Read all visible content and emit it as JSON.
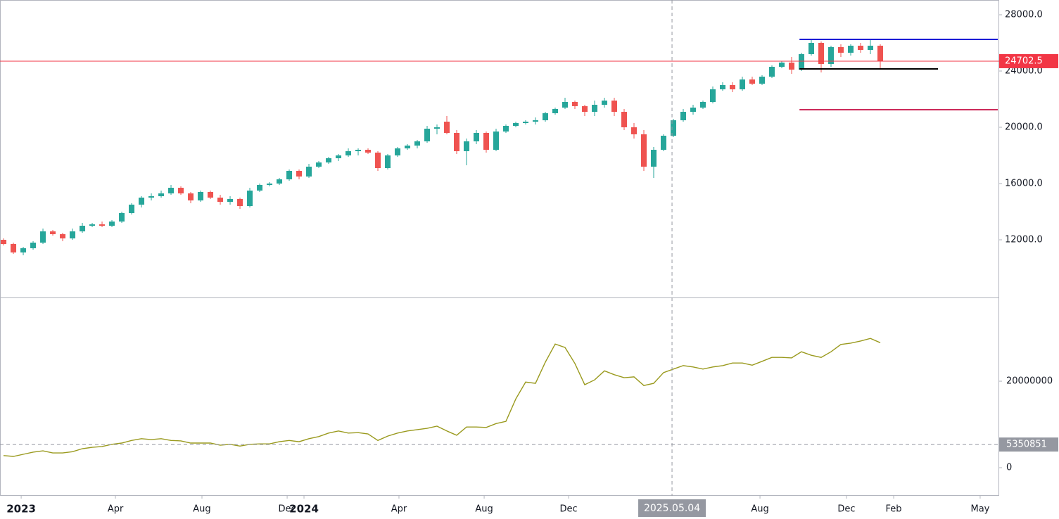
{
  "chart_data": [
    {
      "type": "candlestick",
      "color_up": "#26a69a",
      "color_down": "#ef5350",
      "open": [
        12000,
        11700,
        11100,
        11400,
        11800,
        12600,
        12400,
        12100,
        12600,
        13000,
        13100,
        13000,
        13300,
        13900,
        14500,
        15000,
        15100,
        15300,
        15700,
        15300,
        14800,
        15400,
        15000,
        14700,
        14900,
        14400,
        15500,
        15900,
        16000,
        16300,
        16900,
        16500,
        17200,
        17500,
        17800,
        18000,
        18300,
        18400,
        18200,
        17100,
        18000,
        18500,
        18700,
        19000,
        19900,
        20400,
        19600,
        18300,
        19000,
        19600,
        18400,
        19700,
        20100,
        20300,
        20400,
        20500,
        21000,
        21400,
        21800,
        21500,
        21100,
        21600,
        21900,
        21100,
        20000,
        19500,
        17200,
        18400,
        19400,
        20500,
        21100,
        21400,
        21800,
        22700,
        23000,
        22700,
        23400,
        23100,
        23600,
        24300,
        24600,
        24100,
        25200,
        26000,
        24500,
        25700,
        25300,
        25800,
        25500,
        25800
      ],
      "high": [
        12100,
        11800,
        11500,
        11900,
        12800,
        12700,
        12500,
        12800,
        13200,
        13200,
        13300,
        13400,
        14000,
        14600,
        15100,
        15300,
        15500,
        15900,
        15800,
        15400,
        15500,
        15500,
        15200,
        15100,
        15000,
        15700,
        16000,
        16100,
        16400,
        17000,
        17000,
        17400,
        17600,
        17900,
        18100,
        18500,
        18500,
        18500,
        18300,
        18100,
        18600,
        18800,
        19100,
        20100,
        20200,
        20800,
        19800,
        19200,
        19800,
        19700,
        19900,
        20200,
        20400,
        20500,
        20700,
        21100,
        21400,
        22100,
        21900,
        21600,
        21900,
        22100,
        22100,
        21300,
        20300,
        19800,
        18600,
        19500,
        20600,
        21300,
        21600,
        21900,
        22900,
        23200,
        23200,
        23600,
        23600,
        23700,
        24400,
        24700,
        25000,
        25300,
        26200,
        26100,
        25800,
        25900,
        25900,
        26000,
        26300,
        25900
      ],
      "low": [
        11600,
        11000,
        10900,
        11300,
        11700,
        12300,
        11900,
        12000,
        12500,
        12900,
        12900,
        12900,
        13200,
        13800,
        14300,
        14800,
        15000,
        15200,
        15200,
        14600,
        14700,
        14900,
        14500,
        14500,
        14200,
        14300,
        15400,
        15800,
        15900,
        16200,
        16300,
        16400,
        17100,
        17400,
        17600,
        17900,
        18000,
        18100,
        16900,
        17000,
        17900,
        18400,
        18500,
        18900,
        19500,
        19500,
        18100,
        17300,
        18800,
        18200,
        18300,
        19600,
        20000,
        20200,
        20200,
        20400,
        20900,
        21300,
        21300,
        20800,
        20800,
        21400,
        20800,
        19800,
        19200,
        16900,
        16400,
        18300,
        19300,
        20400,
        20900,
        21300,
        21700,
        22600,
        22500,
        22600,
        23000,
        23000,
        23500,
        24200,
        23800,
        24000,
        25100,
        23900,
        24300,
        25000,
        25100,
        25300,
        25200,
        24200
      ],
      "close": [
        11700,
        11100,
        11400,
        11800,
        12600,
        12400,
        12100,
        12600,
        13000,
        13100,
        13000,
        13300,
        13900,
        14500,
        15000,
        15100,
        15300,
        15700,
        15300,
        14800,
        15400,
        15000,
        14700,
        14900,
        14400,
        15500,
        15900,
        16000,
        16300,
        16900,
        16500,
        17200,
        17500,
        17800,
        18000,
        18300,
        18400,
        18200,
        17100,
        18000,
        18500,
        18700,
        19000,
        19900,
        20000,
        19600,
        18300,
        19000,
        19600,
        18400,
        19700,
        20100,
        20300,
        20400,
        20500,
        21000,
        21300,
        21800,
        21500,
        21100,
        21600,
        21900,
        21100,
        20000,
        19500,
        17200,
        18400,
        19400,
        20500,
        21100,
        21400,
        21800,
        22700,
        23000,
        22700,
        23400,
        23100,
        23600,
        24300,
        24600,
        24100,
        25200,
        26000,
        24500,
        25700,
        25300,
        25800,
        25500,
        25800,
        24702.5
      ],
      "last_price": 24702.5,
      "levels": [
        {
          "value": 26250,
          "color": "#1c1cd6",
          "start": 80.8,
          "end": 100.93
        },
        {
          "value": 24150,
          "color": "#000000",
          "start": 80.8,
          "end": 94.86
        },
        {
          "value": 21250,
          "color": "#cc2a5a",
          "start": 80.8,
          "end": 100.93
        }
      ],
      "last_line_color": "#f23645",
      "ylim": [
        7900,
        29050
      ],
      "yticks": [
        {
          "value": 28000,
          "label": "28000.0"
        },
        {
          "value": 24000,
          "label": "24000.0"
        },
        {
          "value": 20000,
          "label": "20000.0"
        },
        {
          "value": 16000,
          "label": "16000.0"
        },
        {
          "value": 12000,
          "label": "12000.0"
        }
      ],
      "xlim": [
        -0.36,
        100.93
      ],
      "xticks": [
        {
          "value": 1.79,
          "label": "2023"
        },
        {
          "value": 11.36,
          "label": "Apr"
        },
        {
          "value": 20.14,
          "label": "Aug"
        },
        {
          "value": 28.79,
          "label": "Dec"
        },
        {
          "value": 30.5,
          "label": "2024"
        },
        {
          "value": 40.14,
          "label": "Apr"
        },
        {
          "value": 48.79,
          "label": "Aug"
        },
        {
          "value": 57.36,
          "label": "Dec"
        },
        {
          "value": 76.79,
          "label": "Aug"
        },
        {
          "value": 85.57,
          "label": "Dec"
        },
        {
          "value": 90.36,
          "label": "Feb"
        },
        {
          "value": 99.14,
          "label": "May"
        }
      ]
    },
    {
      "type": "line",
      "series": [
        {
          "color": "#9a9a1e",
          "values": [
            2800000,
            2600000,
            3100000,
            3600000,
            3900000,
            3400000,
            3400000,
            3700000,
            4400000,
            4700000,
            4900000,
            5400000,
            5700000,
            6300000,
            6700000,
            6500000,
            6700000,
            6300000,
            6200000,
            5700000,
            5700000,
            5700000,
            5200000,
            5400000,
            5000000,
            5400000,
            5500000,
            5500000,
            6000000,
            6300000,
            6000000,
            6700000,
            7200000,
            8000000,
            8500000,
            8000000,
            8100000,
            7800000,
            6300000,
            7300000,
            8000000,
            8500000,
            8800000,
            9100000,
            9600000,
            8500000,
            7500000,
            9400000,
            9400000,
            9300000,
            10200000,
            10700000,
            15900000,
            19800000,
            19500000,
            24400000,
            28600000,
            27800000,
            24100000,
            19200000,
            20300000,
            22400000,
            21500000,
            20800000,
            21000000,
            19000000,
            19500000,
            22000000,
            22800000,
            23600000,
            23300000,
            22800000,
            23300000,
            23600000,
            24200000,
            24200000,
            23700000,
            24600000,
            25500000,
            25500000,
            25400000,
            26800000,
            26000000,
            25500000,
            26800000,
            28500000,
            28800000,
            29300000,
            29900000,
            28900000
          ]
        }
      ],
      "ylim": [
        -6500000,
        39200000
      ],
      "yticks": [
        20000000,
        0
      ],
      "crosshair": {
        "x": 67.86,
        "x_label": "2025.05.04",
        "y": 5350851
      }
    }
  ]
}
